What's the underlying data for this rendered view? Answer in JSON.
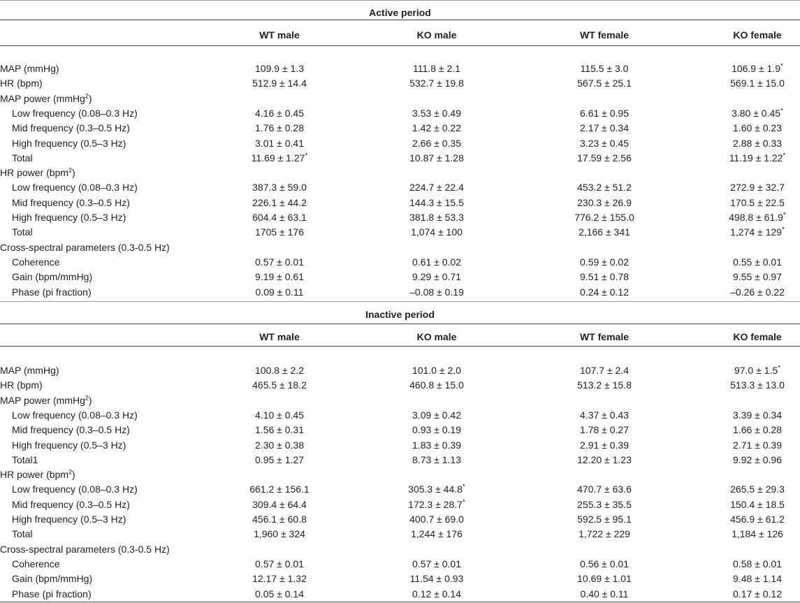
{
  "columns": [
    "WT male",
    "KO male",
    "WT female",
    "KO female"
  ],
  "sections": [
    {
      "title": "Active period",
      "rows": [
        {
          "label": "MAP (mmHg)",
          "indent": false,
          "values": [
            "109.9 ± 1.3",
            "111.8 ± 2.1",
            "115.5 ± 3.0",
            "106.9 ± 1.9"
          ],
          "stars": [
            "",
            "",
            "",
            "*"
          ]
        },
        {
          "label": "HR (bpm)",
          "indent": false,
          "values": [
            "512.9 ± 14.4",
            "532.7 ± 19.8",
            "567.5 ± 25.1",
            "569.1 ± 15.0"
          ],
          "stars": [
            "",
            "",
            "",
            ""
          ]
        },
        {
          "label": "MAP power (mmHg",
          "sup": "2",
          "label_suffix": ")",
          "indent": false,
          "values": [
            "",
            "",
            "",
            ""
          ],
          "stars": [
            "",
            "",
            "",
            ""
          ]
        },
        {
          "label": "Low frequency (0.08–0.3 Hz)",
          "indent": true,
          "values": [
            "4.16 ± 0.45",
            "3.53 ± 0.49",
            "6.61 ± 0.95",
            "3.80 ± 0.45"
          ],
          "stars": [
            "",
            "",
            "",
            "*"
          ]
        },
        {
          "label": "Mid frequency (0.3–0.5 Hz)",
          "indent": true,
          "values": [
            "1.76 ± 0.28",
            "1.42 ± 0.22",
            "2.17 ± 0.34",
            "1.60 ± 0.23"
          ],
          "stars": [
            "",
            "",
            "",
            ""
          ]
        },
        {
          "label": "High frequency (0.5–3 Hz)",
          "indent": true,
          "values": [
            "3.01 ± 0.41",
            "2.66 ± 0.35",
            "3.23 ± 0.45",
            "2.88 ± 0.33"
          ],
          "stars": [
            "",
            "",
            "",
            ""
          ]
        },
        {
          "label": "Total",
          "indent": true,
          "values": [
            "11.69 ± 1.27",
            "10.87 ± 1.28",
            "17.59 ± 2.56",
            "11.19 ± 1.22"
          ],
          "stars": [
            "*",
            "",
            "",
            "*"
          ]
        },
        {
          "label": "HR power (bpm",
          "sup": "2",
          "label_suffix": ")",
          "indent": false,
          "values": [
            "",
            "",
            "",
            ""
          ],
          "stars": [
            "",
            "",
            "",
            ""
          ]
        },
        {
          "label": "Low frequency (0.08–0.3 Hz)",
          "indent": true,
          "values": [
            "387.3 ± 59.0",
            "224.7 ± 22.4",
            "453.2 ± 51.2",
            "272.9 ± 32.7"
          ],
          "stars": [
            "",
            "",
            "",
            ""
          ]
        },
        {
          "label": "Mid frequency (0.3–0.5 Hz)",
          "indent": true,
          "values": [
            "226.1 ± 44.2",
            "144.3 ± 15.5",
            "230.3 ± 26.9",
            "170.5 ± 22.5"
          ],
          "stars": [
            "",
            "",
            "",
            ""
          ]
        },
        {
          "label": "High frequency (0.5–3 Hz)",
          "indent": true,
          "values": [
            "604.4 ± 63.1",
            "381.8 ± 53.3",
            "776.2 ± 155.0",
            "498.8 ± 61.9"
          ],
          "stars": [
            "",
            "",
            "",
            "*"
          ]
        },
        {
          "label": "Total",
          "indent": true,
          "values": [
            "1705 ± 176",
            "1,074 ± 100",
            "2,166 ± 341",
            "1,274 ± 129"
          ],
          "stars": [
            "",
            "",
            "",
            "*"
          ]
        },
        {
          "label": "Cross-spectral parameters (0.3-0.5 Hz)",
          "indent": false,
          "values": [
            "",
            "",
            "",
            ""
          ],
          "stars": [
            "",
            "",
            "",
            ""
          ]
        },
        {
          "label": "Coherence",
          "indent": true,
          "values": [
            "0.57 ± 0.01",
            "0.61 ± 0.02",
            "0.59 ± 0.02",
            "0.55 ± 0.01"
          ],
          "stars": [
            "",
            "",
            "",
            ""
          ]
        },
        {
          "label": "Gain (bpm/mmHg)",
          "indent": true,
          "values": [
            "9.19 ± 0.61",
            "9.29 ± 0.71",
            "9.51 ± 0.78",
            "9.55 ± 0.97"
          ],
          "stars": [
            "",
            "",
            "",
            ""
          ]
        },
        {
          "label": "Phase (pi fraction)",
          "indent": true,
          "values": [
            "0.09 ± 0.11",
            "–0.08 ± 0.19",
            "0.24 ± 0.12",
            "–0.26 ± 0.22"
          ],
          "stars": [
            "",
            "",
            "",
            ""
          ]
        }
      ]
    },
    {
      "title": "Inactive period",
      "rows": [
        {
          "label": "MAP (mmHg)",
          "indent": false,
          "values": [
            "100.8 ± 2.2",
            "101.0 ± 2.0",
            "107.7 ± 2.4",
            "97.0 ± 1.5"
          ],
          "stars": [
            "",
            "",
            "",
            "*"
          ]
        },
        {
          "label": "HR (bpm)",
          "indent": false,
          "values": [
            "465.5 ± 18.2",
            "460.8 ± 15.0",
            "513.2 ± 15.8",
            "513.3 ± 13.0"
          ],
          "stars": [
            "",
            "",
            "",
            ""
          ]
        },
        {
          "label": "MAP power (mmHg",
          "sup": "2",
          "label_suffix": ")",
          "indent": false,
          "values": [
            "",
            "",
            "",
            ""
          ],
          "stars": [
            "",
            "",
            "",
            ""
          ]
        },
        {
          "label": "Low frequency (0.08–0.3 Hz)",
          "indent": true,
          "values": [
            "4.10 ± 0.45",
            "3.09 ± 0.42",
            "4.37 ± 0.43",
            "3.39 ± 0.34"
          ],
          "stars": [
            "",
            "",
            "",
            ""
          ]
        },
        {
          "label": "Mid frequency (0.3–0.5 Hz)",
          "indent": true,
          "values": [
            "1.56 ± 0.31",
            "0.93 ± 0.19",
            "1.78 ± 0.27",
            "1.66 ± 0.28"
          ],
          "stars": [
            "",
            "",
            "",
            ""
          ]
        },
        {
          "label": "High frequency (0.5–3 Hz)",
          "indent": true,
          "values": [
            "2.30 ± 0.38",
            "1.83 ± 0.39",
            "2.91 ± 0.39",
            "2.71 ± 0.39"
          ],
          "stars": [
            "",
            "",
            "",
            ""
          ]
        },
        {
          "label": "Total1",
          "indent": true,
          "values": [
            "0.95 ± 1.27",
            "8.73 ± 1.13",
            "12.20 ± 1.23",
            "9.92 ± 0.96"
          ],
          "stars": [
            "",
            "",
            "",
            ""
          ]
        },
        {
          "label": "HR power (bpm",
          "sup": "2",
          "label_suffix": ")",
          "indent": false,
          "values": [
            "",
            "",
            "",
            ""
          ],
          "stars": [
            "",
            "",
            "",
            ""
          ]
        },
        {
          "label": "Low frequency (0.08–0.3 Hz)",
          "indent": true,
          "values": [
            "661.2 ± 156.1",
            "305.3 ± 44.8",
            "470.7 ± 63.6",
            "265.5 ± 29.3"
          ],
          "stars": [
            "",
            "*",
            "",
            ""
          ]
        },
        {
          "label": "Mid frequency (0.3–0.5 Hz)",
          "indent": true,
          "values": [
            "309.4 ± 64.4",
            "172.3 ± 28.7",
            "255.3 ± 35.5",
            "150.4 ± 18.5"
          ],
          "stars": [
            "",
            "*",
            "",
            ""
          ]
        },
        {
          "label": "High frequency (0.5–3 Hz)",
          "indent": true,
          "values": [
            "456.1 ± 60.8",
            "400.7 ± 69.0",
            "592.5 ± 95.1",
            "456.9 ± 61.2"
          ],
          "stars": [
            "",
            "",
            "",
            ""
          ]
        },
        {
          "label": "Total",
          "indent": true,
          "values": [
            "1,960 ± 324",
            "1,244 ± 176",
            "1,722 ± 229",
            "1,184 ± 126"
          ],
          "stars": [
            "",
            "",
            "",
            ""
          ]
        },
        {
          "label": "Cross-spectral parameters (0.3-0.5 Hz)",
          "indent": false,
          "values": [
            "",
            "",
            "",
            ""
          ],
          "stars": [
            "",
            "",
            "",
            ""
          ]
        },
        {
          "label": "Coherence",
          "indent": true,
          "values": [
            "0.57 ± 0.01",
            "0.57 ± 0.01",
            "0.56 ± 0.01",
            "0.58 ± 0.01"
          ],
          "stars": [
            "",
            "",
            "",
            ""
          ]
        },
        {
          "label": "Gain (bpm/mmHg)",
          "indent": true,
          "values": [
            "12.17 ± 1.32",
            "11.54 ± 0.93",
            "10.69 ± 1.01",
            "9.48 ± 1.14"
          ],
          "stars": [
            "",
            "",
            "",
            ""
          ]
        },
        {
          "label": "Phase (pi fraction)",
          "indent": true,
          "values": [
            "0.05 ± 0.14",
            "0.12 ± 0.14",
            "0.40 ± 0.11",
            "0.17 ± 0.12"
          ],
          "stars": [
            "",
            "",
            "",
            ""
          ]
        }
      ]
    }
  ]
}
